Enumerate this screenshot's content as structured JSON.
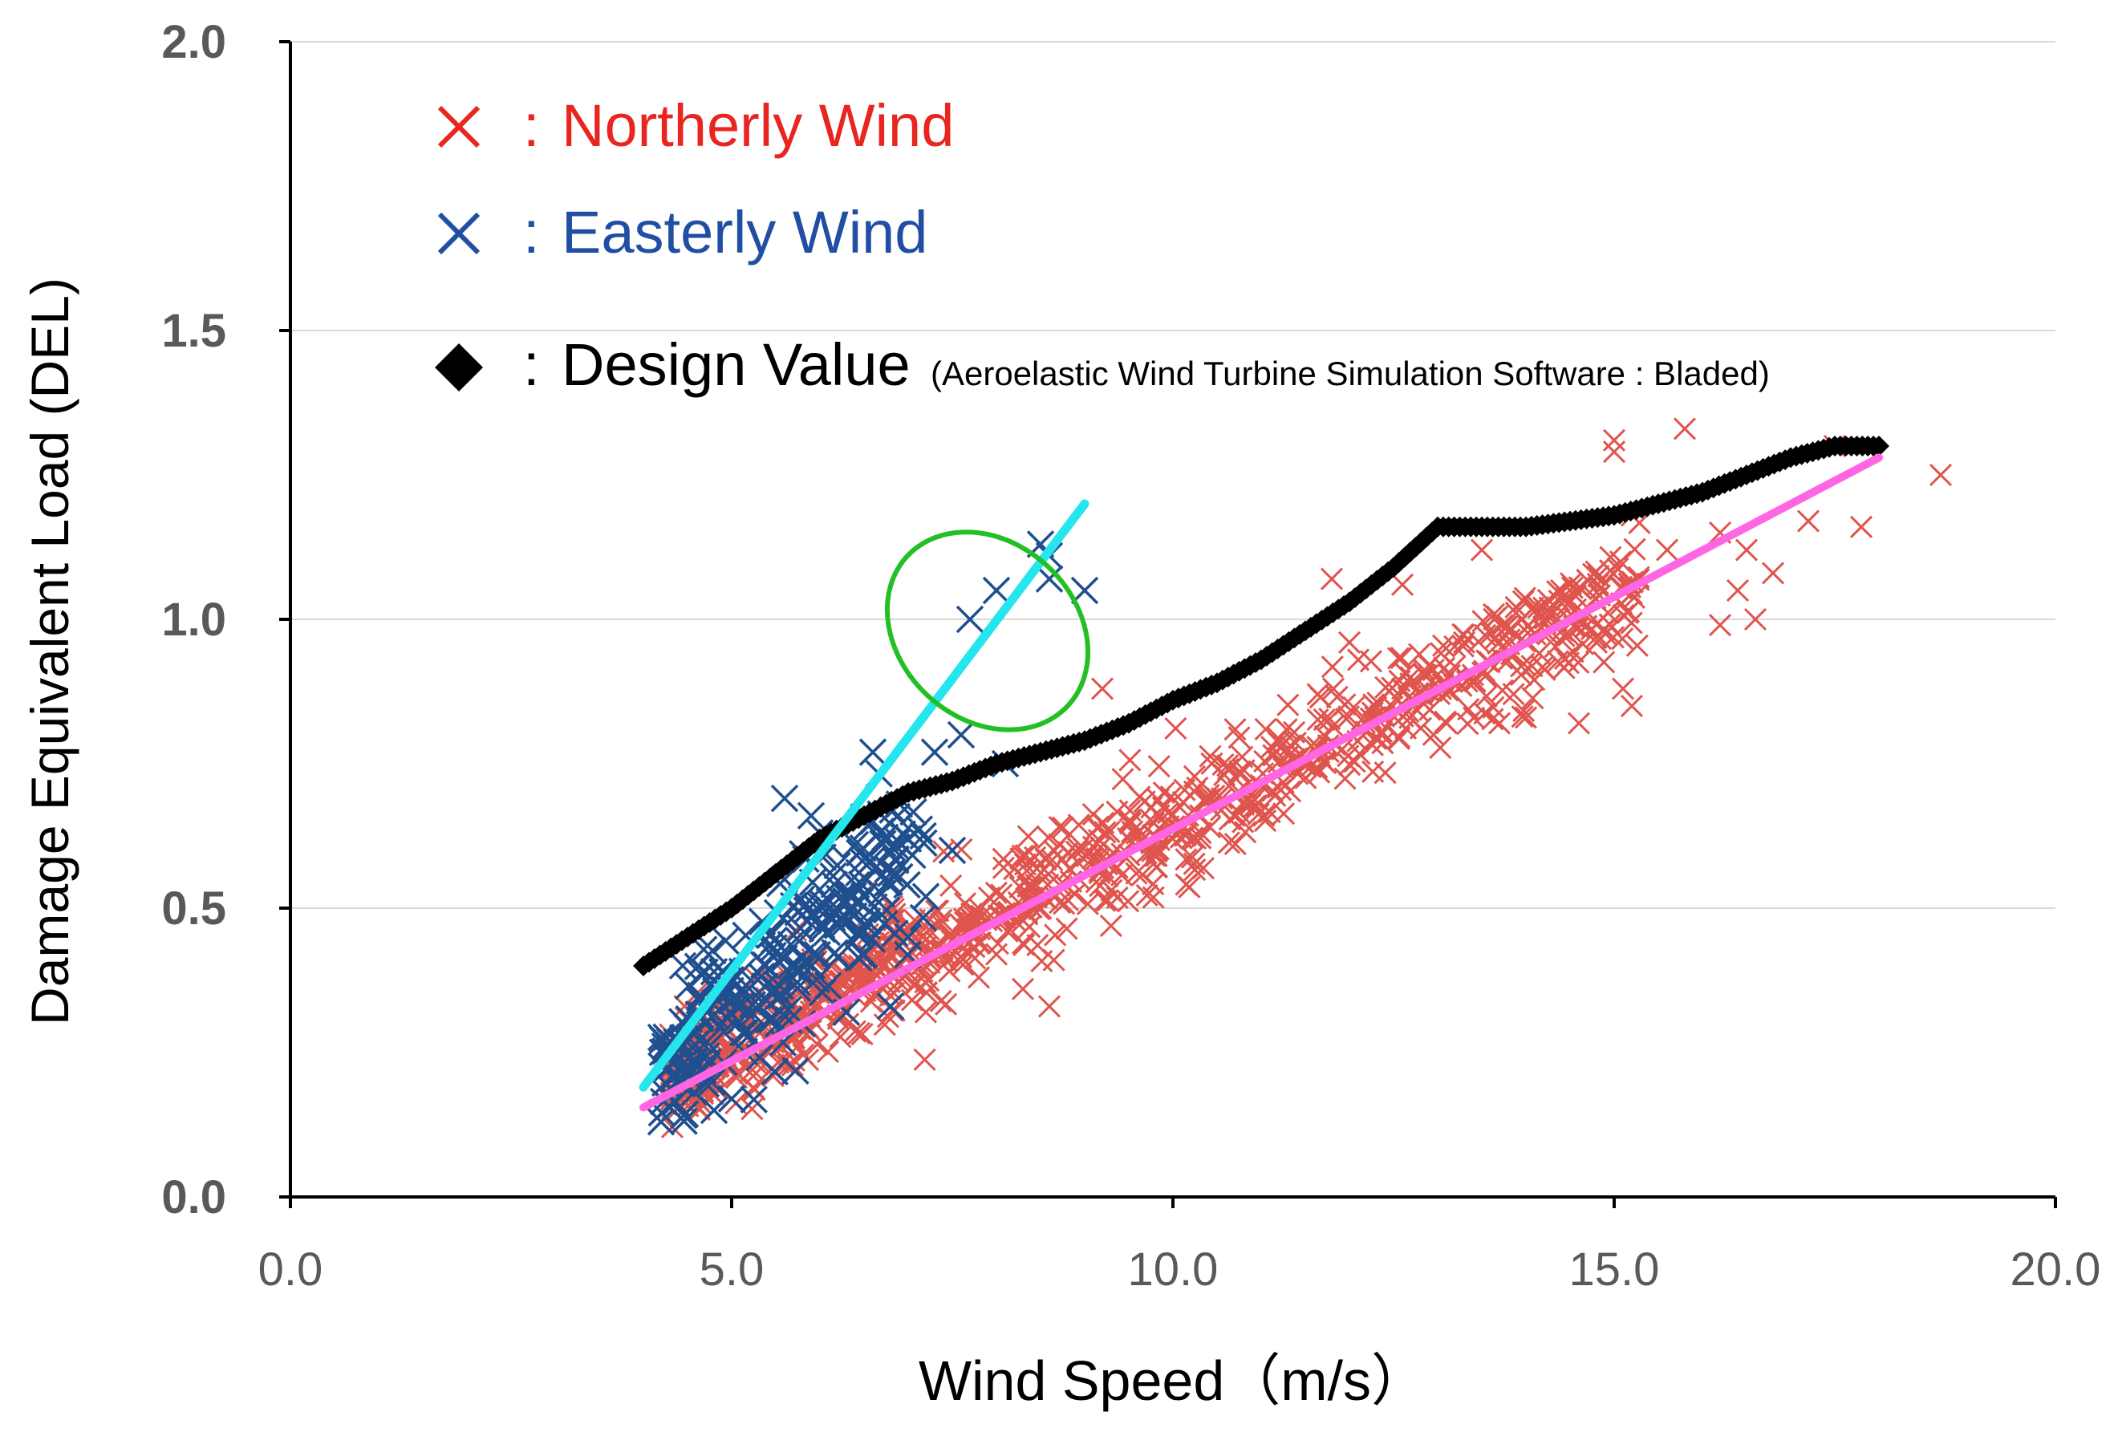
{
  "chart_data": {
    "type": "scatter",
    "title": "",
    "xlabel": "Wind Speed（m/s）",
    "ylabel": "Damage Equivalent Load (DEL)",
    "xlim": [
      0,
      20
    ],
    "ylim": [
      0,
      2
    ],
    "xticks": [
      "0.0",
      "5.0",
      "10.0",
      "15.0",
      "20.0"
    ],
    "yticks": [
      "0.0",
      "0.5",
      "1.0",
      "1.5",
      "2.0"
    ],
    "grid": "horizontal",
    "legend": {
      "placement": "top-left",
      "entries": [
        {
          "marker": "x",
          "text": "Northerly Wind",
          "color": "#e8251f"
        },
        {
          "marker": "x",
          "text": "Easterly Wind",
          "color": "#1f4ea3"
        },
        {
          "marker": "diamond",
          "text": "Design Value",
          "color": "#000000"
        }
      ],
      "separator": ": ",
      "design_note": "(Aeroelastic Wind Turbine Simulation Software : Bladed)"
    },
    "colors": {
      "northerly": "#e0544e",
      "easterly": "#1f4f8f",
      "design": "#000000",
      "northerly_trend": "#ff66e3",
      "easterly_trend": "#25e5ee",
      "highlight": "#22c025",
      "grid": "#d9d9d9",
      "axis": "#000000",
      "tick_text": "#595959"
    },
    "series": [
      {
        "name": "Northerly Wind",
        "marker": "x",
        "generated": {
          "count": 900,
          "x_range": [
            4.3,
            15.3
          ],
          "intercept": -0.13,
          "slope": 0.078,
          "noise": 0.05
        },
        "points": [
          [
            15.8,
            1.33
          ],
          [
            15.0,
            1.31
          ],
          [
            15.0,
            1.29
          ],
          [
            18.7,
            1.25
          ],
          [
            17.5,
            1.3
          ],
          [
            17.8,
            1.16
          ],
          [
            16.2,
            1.15
          ],
          [
            17.2,
            1.17
          ],
          [
            16.5,
            1.12
          ],
          [
            16.8,
            1.08
          ],
          [
            16.4,
            1.05
          ],
          [
            16.6,
            1.0
          ],
          [
            16.2,
            0.99
          ],
          [
            15.6,
            1.12
          ],
          [
            15.2,
            1.18
          ],
          [
            13.5,
            1.12
          ],
          [
            14.2,
            1.02
          ],
          [
            14.8,
            0.96
          ],
          [
            15.1,
            0.88
          ],
          [
            15.2,
            0.85
          ],
          [
            14.6,
            0.82
          ],
          [
            14.0,
            0.83
          ],
          [
            13.7,
            0.82
          ],
          [
            13.1,
            0.82
          ],
          [
            12.6,
            0.88
          ],
          [
            12.0,
            0.96
          ],
          [
            12.1,
            0.93
          ],
          [
            11.8,
            1.07
          ],
          [
            12.6,
            1.06
          ],
          [
            9.2,
            0.88
          ],
          [
            8.3,
            0.36
          ],
          [
            8.6,
            0.33
          ],
          [
            7.8,
            0.38
          ],
          [
            7.2,
            0.32
          ],
          [
            8.0,
            0.42
          ],
          [
            12.9,
            0.92
          ],
          [
            13.3,
            0.96
          ],
          [
            14.4,
            1.05
          ]
        ]
      },
      {
        "name": "Easterly Wind",
        "marker": "x",
        "generated": {
          "count": 230,
          "x_range": [
            4.2,
            7.2
          ],
          "intercept": -0.39,
          "slope": 0.142,
          "noise": 0.07
        },
        "points": [
          [
            8.5,
            1.13
          ],
          [
            8.6,
            1.07
          ],
          [
            9.0,
            1.05
          ],
          [
            8.0,
            1.05
          ],
          [
            7.7,
            1.0
          ],
          [
            8.6,
            1.11
          ],
          [
            6.6,
            0.77
          ],
          [
            7.3,
            0.77
          ],
          [
            7.6,
            0.8
          ],
          [
            8.1,
            0.75
          ],
          [
            5.6,
            0.69
          ],
          [
            5.9,
            0.66
          ],
          [
            6.0,
            0.63
          ],
          [
            6.4,
            0.61
          ],
          [
            6.6,
            0.65
          ],
          [
            6.9,
            0.68
          ],
          [
            7.0,
            0.62
          ],
          [
            7.5,
            0.6
          ],
          [
            6.8,
            0.56
          ],
          [
            7.2,
            0.52
          ],
          [
            4.4,
            0.2
          ],
          [
            4.5,
            0.22
          ],
          [
            4.2,
            0.13
          ],
          [
            4.8,
            0.15
          ],
          [
            5.0,
            0.17
          ],
          [
            6.2,
            0.47
          ],
          [
            6.5,
            0.42
          ],
          [
            5.5,
            0.36
          ],
          [
            7.0,
            0.45
          ],
          [
            4.8,
            0.39
          ],
          [
            5.8,
            0.3
          ],
          [
            6.3,
            0.32
          ],
          [
            6.8,
            0.33
          ],
          [
            5.2,
            0.28
          ],
          [
            5.6,
            0.55
          ]
        ]
      },
      {
        "name": "Design Value",
        "marker": "diamond",
        "points": [
          [
            4.0,
            0.4
          ],
          [
            4.5,
            0.45
          ],
          [
            5.0,
            0.5
          ],
          [
            5.5,
            0.56
          ],
          [
            6.0,
            0.62
          ],
          [
            6.5,
            0.66
          ],
          [
            7.0,
            0.7
          ],
          [
            7.5,
            0.72
          ],
          [
            8.0,
            0.75
          ],
          [
            8.5,
            0.77
          ],
          [
            9.0,
            0.79
          ],
          [
            9.5,
            0.82
          ],
          [
            10.0,
            0.86
          ],
          [
            10.5,
            0.89
          ],
          [
            11.0,
            0.93
          ],
          [
            11.5,
            0.98
          ],
          [
            12.0,
            1.03
          ],
          [
            12.5,
            1.09
          ],
          [
            13.0,
            1.16
          ],
          [
            13.5,
            1.16
          ],
          [
            14.0,
            1.16
          ],
          [
            14.5,
            1.17
          ],
          [
            15.0,
            1.18
          ],
          [
            15.5,
            1.2
          ],
          [
            16.0,
            1.22
          ],
          [
            16.5,
            1.25
          ],
          [
            17.0,
            1.28
          ],
          [
            17.5,
            1.3
          ],
          [
            18.0,
            1.3
          ]
        ]
      }
    ],
    "trendlines": [
      {
        "name": "Northerly trend",
        "from": [
          4.0,
          0.155
        ],
        "to": [
          18.0,
          1.28
        ]
      },
      {
        "name": "Easterly trend",
        "from": [
          4.0,
          0.19
        ],
        "to": [
          9.0,
          1.2
        ]
      }
    ],
    "highlight_ellipse": {
      "center": [
        7.9,
        0.98
      ],
      "rx_data": 1.25,
      "ry_data": 0.19,
      "rotation_deg": -47
    }
  }
}
